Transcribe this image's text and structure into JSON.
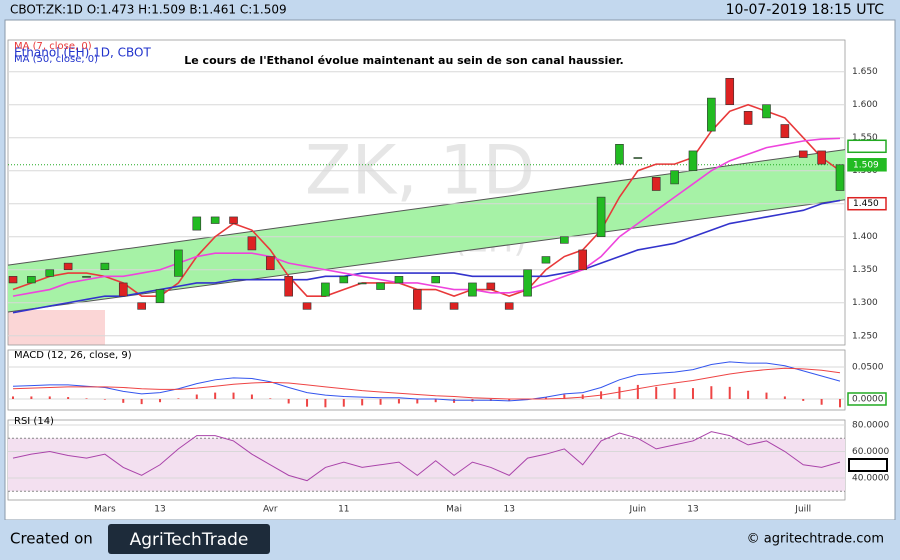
{
  "header": {
    "symbol_info": "CBOT:ZK:1D O:1.473 H:1.509 B:1.461 C:1.509",
    "datetime": "10-07-2019 18:15 UTC"
  },
  "chart_data": [
    {
      "type": "candlestick",
      "title": "Le cours de l'Ethanol évolue maintenant au sein de son canal haussier.",
      "watermark": [
        "ZK, 1D",
        "Ethanol (EH)"
      ],
      "symbol_name": "Ethanol (EH) 1D, CBOT",
      "categories": [
        null,
        null,
        null,
        null,
        null,
        "Mars",
        null,
        null,
        "13",
        null,
        null,
        null,
        null,
        null,
        "Avr",
        null,
        null,
        null,
        "11",
        null,
        null,
        null,
        null,
        null,
        "Mai",
        null,
        null,
        "13",
        null,
        null,
        null,
        null,
        null,
        null,
        "Juin",
        null,
        null,
        "13",
        null,
        null,
        null,
        null,
        null,
        "Juill",
        null,
        null
      ],
      "open": [
        1.34,
        1.33,
        1.34,
        1.36,
        1.34,
        1.35,
        1.33,
        1.3,
        1.3,
        1.34,
        1.41,
        1.42,
        1.43,
        1.4,
        1.37,
        1.34,
        1.3,
        1.31,
        1.33,
        1.33,
        1.32,
        1.33,
        1.32,
        1.33,
        1.3,
        1.31,
        1.33,
        1.3,
        1.31,
        1.36,
        1.39,
        1.38,
        1.4,
        1.51,
        1.52,
        1.49,
        1.48,
        1.5,
        1.56,
        1.64,
        1.59,
        1.58,
        1.57,
        1.53,
        1.53,
        1.47
      ],
      "close": [
        1.33,
        1.34,
        1.35,
        1.35,
        1.34,
        1.36,
        1.31,
        1.29,
        1.32,
        1.38,
        1.43,
        1.43,
        1.42,
        1.38,
        1.35,
        1.31,
        1.29,
        1.33,
        1.34,
        1.33,
        1.33,
        1.34,
        1.29,
        1.34,
        1.29,
        1.33,
        1.32,
        1.29,
        1.35,
        1.37,
        1.4,
        1.35,
        1.46,
        1.54,
        1.52,
        1.47,
        1.5,
        1.53,
        1.61,
        1.6,
        1.57,
        1.6,
        1.55,
        1.52,
        1.51,
        1.509
      ],
      "series": [
        {
          "name": "MA (7, close, 0)",
          "color": "#e8393a",
          "values": [
            1.32,
            1.33,
            1.34,
            1.345,
            1.345,
            1.34,
            1.33,
            1.31,
            1.31,
            1.33,
            1.37,
            1.4,
            1.42,
            1.41,
            1.38,
            1.34,
            1.31,
            1.31,
            1.32,
            1.33,
            1.33,
            1.33,
            1.32,
            1.32,
            1.31,
            1.32,
            1.32,
            1.31,
            1.32,
            1.35,
            1.37,
            1.38,
            1.41,
            1.46,
            1.5,
            1.51,
            1.51,
            1.52,
            1.56,
            1.59,
            1.6,
            1.59,
            1.58,
            1.55,
            1.52,
            1.5
          ]
        },
        {
          "name": "MA (50, close, 0)",
          "color": "#3333cc",
          "values": [
            1.285,
            1.29,
            1.295,
            1.3,
            1.305,
            1.31,
            1.31,
            1.315,
            1.32,
            1.325,
            1.33,
            1.33,
            1.335,
            1.335,
            1.335,
            1.335,
            1.335,
            1.34,
            1.34,
            1.345,
            1.345,
            1.345,
            1.345,
            1.345,
            1.345,
            1.34,
            1.34,
            1.34,
            1.34,
            1.34,
            1.345,
            1.35,
            1.36,
            1.37,
            1.38,
            1.385,
            1.39,
            1.4,
            1.41,
            1.42,
            1.425,
            1.43,
            1.435,
            1.44,
            1.45,
            1.455
          ]
        },
        {
          "color": "#ee44dd",
          "values": [
            1.31,
            1.315,
            1.32,
            1.33,
            1.335,
            1.34,
            1.34,
            1.345,
            1.35,
            1.36,
            1.37,
            1.375,
            1.375,
            1.375,
            1.37,
            1.36,
            1.355,
            1.35,
            1.345,
            1.34,
            1.335,
            1.33,
            1.33,
            1.325,
            1.32,
            1.32,
            1.315,
            1.315,
            1.32,
            1.33,
            1.34,
            1.35,
            1.37,
            1.4,
            1.42,
            1.44,
            1.46,
            1.48,
            1.5,
            1.515,
            1.525,
            1.535,
            1.54,
            1.545,
            1.548,
            1.549
          ]
        }
      ],
      "channel": {
        "upper": [
          1.357,
          1.532
        ],
        "lower": [
          1.286,
          1.456
        ],
        "color": "#a6f2a6"
      },
      "last_price_line": {
        "value": 1.509,
        "color": "#22aa22"
      },
      "price_labels": [
        {
          "value": 1.537,
          "color": "#22aa22",
          "style": "outline"
        },
        {
          "value": 1.509,
          "label": "1.509",
          "color": "#22bb22",
          "style": "filled"
        },
        {
          "value": 1.45,
          "label": "1.450",
          "color": "#dd2222",
          "style": "outline"
        }
      ],
      "ylim": [
        1.236,
        1.698
      ],
      "yticks": [
        {
          "value": 1.25,
          "label": "1.250"
        },
        {
          "value": 1.3,
          "label": "1.300"
        },
        {
          "value": 1.35,
          "label": "1.350"
        },
        {
          "value": 1.4,
          "label": "1.400"
        },
        {
          "value": 1.45,
          "label": "1.450"
        },
        {
          "value": 1.5,
          "label": "1.500"
        },
        {
          "value": 1.55,
          "label": "1.550"
        },
        {
          "value": 1.6,
          "label": "1.600"
        },
        {
          "value": 1.65,
          "label": "1.650"
        }
      ],
      "grid": true
    },
    {
      "type": "macd",
      "title": "MACD (12, 26, close, 9)",
      "series": [
        {
          "color": "#3355ee",
          "values": [
            0.02,
            0.021,
            0.022,
            0.022,
            0.02,
            0.018,
            0.012,
            0.008,
            0.01,
            0.016,
            0.024,
            0.03,
            0.033,
            0.032,
            0.027,
            0.018,
            0.01,
            0.006,
            0.004,
            0.003,
            0.002,
            0.002,
            0.0,
            0.0,
            -0.002,
            -0.002,
            -0.002,
            -0.003,
            -0.001,
            0.003,
            0.008,
            0.01,
            0.018,
            0.03,
            0.038,
            0.04,
            0.042,
            0.046,
            0.054,
            0.058,
            0.056,
            0.056,
            0.052,
            0.044,
            0.036,
            0.028
          ]
        },
        {
          "color": "#ee4444",
          "values": [
            0.016,
            0.017,
            0.018,
            0.019,
            0.019,
            0.019,
            0.018,
            0.016,
            0.015,
            0.015,
            0.017,
            0.02,
            0.023,
            0.025,
            0.026,
            0.025,
            0.022,
            0.019,
            0.016,
            0.013,
            0.011,
            0.009,
            0.007,
            0.005,
            0.004,
            0.002,
            0.001,
            0.0,
            0.0,
            0.0,
            0.001,
            0.003,
            0.006,
            0.011,
            0.016,
            0.021,
            0.025,
            0.029,
            0.034,
            0.039,
            0.043,
            0.046,
            0.048,
            0.047,
            0.045,
            0.041
          ]
        }
      ],
      "histogram": {
        "color": "#ee4444",
        "values": [
          0.004,
          0.004,
          0.004,
          0.003,
          0.001,
          -0.001,
          -0.006,
          -0.008,
          -0.005,
          0.001,
          0.007,
          0.01,
          0.01,
          0.007,
          0.001,
          -0.007,
          -0.012,
          -0.013,
          -0.012,
          -0.01,
          -0.009,
          -0.007,
          -0.007,
          -0.005,
          -0.006,
          -0.004,
          -0.003,
          -0.003,
          -0.001,
          0.003,
          0.007,
          0.007,
          0.012,
          0.019,
          0.022,
          0.019,
          0.017,
          0.017,
          0.02,
          0.019,
          0.013,
          0.01,
          0.004,
          -0.003,
          -0.009,
          -0.013
        ]
      },
      "ylim": [
        -0.0172,
        0.0766
      ],
      "yticks": [
        {
          "value": 0.0,
          "label": "0.0000"
        },
        {
          "value": 0.05,
          "label": "0.0500"
        }
      ],
      "grid": true
    },
    {
      "type": "rsi",
      "title": "RSI (14)",
      "series": [
        {
          "color": "#aa44aa",
          "values": [
            55,
            58,
            60,
            57,
            55,
            58,
            48,
            42,
            50,
            62,
            72,
            72,
            68,
            58,
            50,
            42,
            38,
            48,
            52,
            48,
            50,
            52,
            42,
            53,
            42,
            52,
            48,
            42,
            55,
            58,
            62,
            50,
            68,
            74,
            70,
            62,
            65,
            68,
            75,
            72,
            65,
            68,
            60,
            50,
            48,
            52
          ]
        }
      ],
      "levels": [
        30,
        70
      ],
      "band_color": "#f3e0f0",
      "ylim": [
        23.4,
        83.8
      ],
      "yticks": [
        {
          "value": 40,
          "label": "40.0000"
        },
        {
          "value": 60,
          "label": "60.0000"
        },
        {
          "value": 80,
          "label": "80.0000"
        }
      ],
      "grid": true
    }
  ],
  "footer": {
    "created_on": "Created on",
    "logo": "AgriTechTrade",
    "site": "© agritechtrade.com"
  }
}
